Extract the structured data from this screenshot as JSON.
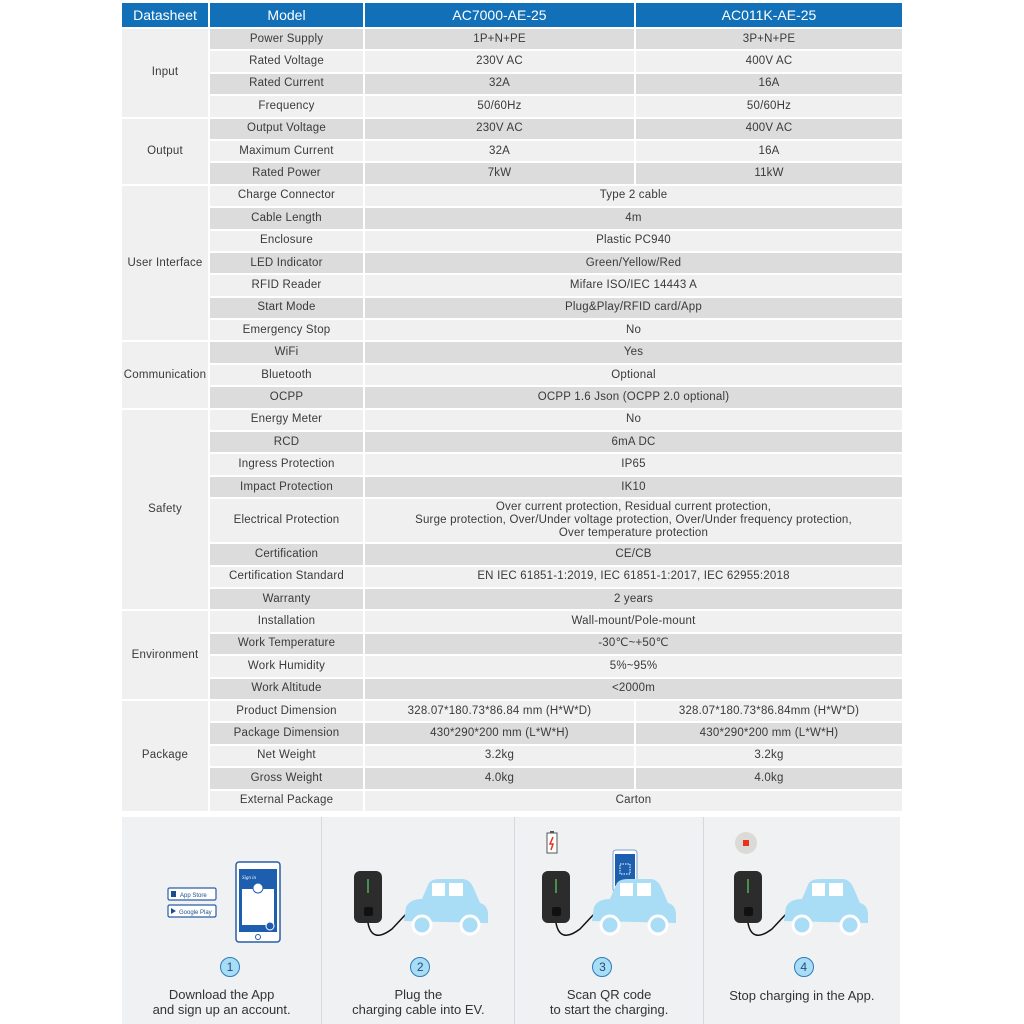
{
  "header": {
    "datasheet": "Datasheet",
    "model": "Model",
    "models": [
      "AC7000-AE-25",
      "AC011K-AE-25"
    ]
  },
  "groups": [
    {
      "name": "Input",
      "rows": [
        {
          "label": "Power Supply",
          "values": [
            "1P+N+PE",
            "3P+N+PE"
          ]
        },
        {
          "label": "Rated Voltage",
          "values": [
            "230V AC",
            "400V AC"
          ]
        },
        {
          "label": "Rated Current",
          "values": [
            "32A",
            "16A"
          ]
        },
        {
          "label": "Frequency",
          "values": [
            "50/60Hz",
            "50/60Hz"
          ]
        }
      ]
    },
    {
      "name": "Output",
      "rows": [
        {
          "label": "Output Voltage",
          "values": [
            "230V AC",
            "400V AC"
          ]
        },
        {
          "label": "Maximum Current",
          "values": [
            "32A",
            "16A"
          ]
        },
        {
          "label": "Rated Power",
          "values": [
            "7kW",
            "11kW"
          ]
        }
      ]
    },
    {
      "name": "User Interface",
      "rows": [
        {
          "label": "Charge Connector",
          "value": "Type 2 cable"
        },
        {
          "label": "Cable Length",
          "value": "4m"
        },
        {
          "label": "Enclosure",
          "value": "Plastic PC940"
        },
        {
          "label": "LED Indicator",
          "value": "Green/Yellow/Red"
        },
        {
          "label": "RFID Reader",
          "value": "Mifare ISO/IEC 14443 A"
        },
        {
          "label": "Start Mode",
          "value": "Plug&Play/RFID card/App"
        },
        {
          "label": "Emergency Stop",
          "value": "No"
        }
      ]
    },
    {
      "name": "Communication",
      "rows": [
        {
          "label": "WiFi",
          "value": "Yes"
        },
        {
          "label": "Bluetooth",
          "value": "Optional"
        },
        {
          "label": "OCPP",
          "value": "OCPP 1.6 Json (OCPP 2.0 optional)"
        }
      ]
    },
    {
      "name": "Safety",
      "rows": [
        {
          "label": "Energy Meter",
          "value": "No"
        },
        {
          "label": "RCD",
          "value": "6mA DC"
        },
        {
          "label": "Ingress Protection",
          "value": "IP65"
        },
        {
          "label": "Impact Protection",
          "value": "IK10"
        },
        {
          "label": "Electrical Protection",
          "lines": [
            "Over current protection, Residual current protection,",
            "Surge protection, Over/Under voltage protection, Over/Under frequency protection,",
            "Over temperature protection"
          ]
        },
        {
          "label": "Certification",
          "value": "CE/CB"
        },
        {
          "label": "Certification Standard",
          "value": "EN IEC 61851-1:2019, IEC 61851-1:2017, IEC 62955:2018"
        },
        {
          "label": "Warranty",
          "value": "2 years"
        }
      ]
    },
    {
      "name": "Environment",
      "rows": [
        {
          "label": "Installation",
          "value": "Wall-mount/Pole-mount"
        },
        {
          "label": "Work Temperature",
          "value": "-30℃~+50℃"
        },
        {
          "label": "Work Humidity",
          "value": "5%~95%"
        },
        {
          "label": "Work Altitude",
          "value": "<2000m"
        }
      ]
    },
    {
      "name": "Package",
      "rows": [
        {
          "label": "Product Dimension",
          "values": [
            "328.07*180.73*86.84 mm (H*W*D)",
            "328.07*180.73*86.84mm (H*W*D)"
          ]
        },
        {
          "label": "Package Dimension",
          "values": [
            "430*290*200 mm (L*W*H)",
            "430*290*200 mm (L*W*H)"
          ]
        },
        {
          "label": "Net Weight",
          "values": [
            "3.2kg",
            "3.2kg"
          ]
        },
        {
          "label": "Gross Weight",
          "values": [
            "4.0kg",
            "4.0kg"
          ]
        },
        {
          "label": "External Package",
          "value": "Carton"
        }
      ]
    }
  ],
  "steps": [
    {
      "number": "1",
      "caption": [
        "Download the App",
        "and sign up an account."
      ],
      "app_store": "App Store",
      "google_play": "Google Play",
      "phone_title": "Sign in"
    },
    {
      "number": "2",
      "caption": [
        "Plug the",
        "charging cable into EV."
      ]
    },
    {
      "number": "3",
      "caption": [
        "Scan QR code",
        "to start the charging."
      ]
    },
    {
      "number": "4",
      "caption": [
        "Stop charging in the App."
      ]
    }
  ],
  "colors": {
    "header": "#1170b8",
    "row_grey": "#dcdcdc",
    "row_light": "#f0f0f0",
    "car": "#a9dcf5",
    "step_number": "#a9dcf5",
    "stop": "#e8321e"
  }
}
